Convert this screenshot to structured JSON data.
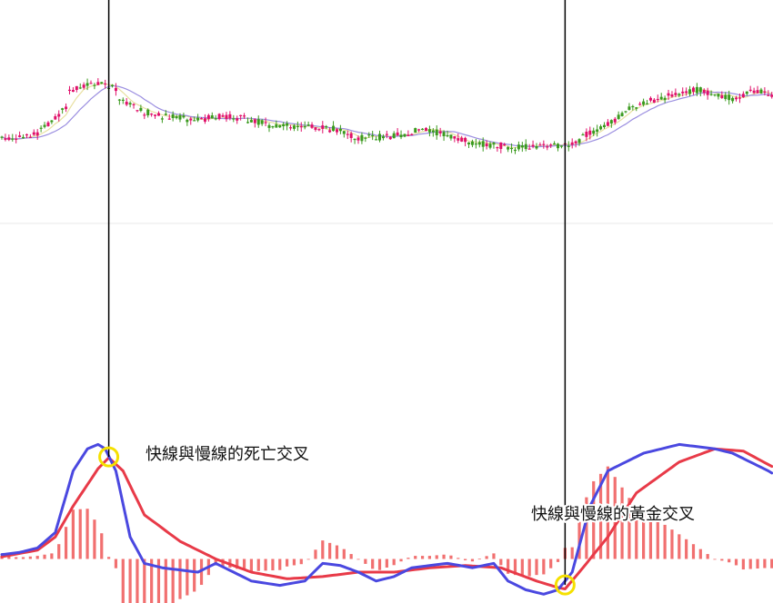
{
  "annotations": {
    "death_cross": "快線與慢線的死亡交叉",
    "golden_cross": "快線與慢線的黃金交叉"
  },
  "colors": {
    "up_candle": "#3a9a1e",
    "down_candle": "#e0106a",
    "ma_short": "#e8e0a0",
    "ma_long": "#9b8ee0",
    "fast_line": "#4a48e0",
    "slow_line": "#e83a48",
    "histogram": "#f06060",
    "marker": "#f5e000",
    "divider": "#000000",
    "panel_separator": "#e8e8e8"
  },
  "chart_data": [
    {
      "type": "candlestick",
      "x": {
        "start": 0,
        "end": 120
      },
      "ylim": [
        0,
        100
      ],
      "grid": false,
      "close_anchors": [
        [
          0,
          38
        ],
        [
          10,
          40
        ],
        [
          18,
          52
        ],
        [
          19,
          60
        ],
        [
          24,
          62
        ],
        [
          28,
          63
        ],
        [
          32,
          60
        ],
        [
          33,
          56
        ],
        [
          40,
          50
        ],
        [
          45,
          48
        ],
        [
          55,
          46
        ],
        [
          60,
          48
        ],
        [
          68,
          47
        ],
        [
          75,
          44
        ],
        [
          85,
          43
        ],
        [
          95,
          42
        ],
        [
          100,
          38
        ],
        [
          110,
          39
        ],
        [
          118,
          42
        ],
        [
          124,
          40
        ],
        [
          132,
          36
        ],
        [
          145,
          34
        ],
        [
          160,
          35
        ],
        [
          165,
          41
        ],
        [
          170,
          44
        ],
        [
          177,
          52
        ],
        [
          182,
          55
        ],
        [
          190,
          58
        ],
        [
          196,
          60
        ],
        [
          200,
          57
        ],
        [
          205,
          56
        ],
        [
          210,
          59
        ],
        [
          212,
          59
        ],
        [
          216,
          58
        ]
      ],
      "series": [
        {
          "name": "",
          "type": "ma",
          "period": 5
        },
        {
          "name": "",
          "type": "ma",
          "period": 12
        }
      ]
    },
    {
      "type": "line",
      "x": {
        "start": 0,
        "end": 120
      },
      "ylim": [
        -10,
        30
      ],
      "grid": false,
      "series": [
        {
          "name": "",
          "role": "fast",
          "anchors": [
            [
              0,
              1
            ],
            [
              5,
              1.5
            ],
            [
              10,
              2.5
            ],
            [
              15,
              6
            ],
            [
              20,
              20
            ],
            [
              24,
              25
            ],
            [
              27,
              26
            ],
            [
              29,
              25
            ],
            [
              32,
              20
            ],
            [
              36,
              5
            ],
            [
              40,
              -1
            ],
            [
              45,
              -2
            ],
            [
              55,
              -3
            ],
            [
              60,
              -1
            ],
            [
              70,
              -5
            ],
            [
              78,
              -6
            ],
            [
              85,
              -5
            ],
            [
              90,
              -1
            ],
            [
              95,
              -1.5
            ],
            [
              100,
              -3
            ],
            [
              105,
              -5
            ],
            [
              110,
              -4
            ],
            [
              115,
              -2
            ],
            [
              125,
              -1
            ],
            [
              132,
              -2
            ],
            [
              138,
              -1
            ],
            [
              142,
              -5
            ],
            [
              147,
              -7
            ],
            [
              152,
              -8
            ],
            [
              156,
              -7
            ],
            [
              160,
              -3
            ],
            [
              165,
              12
            ],
            [
              170,
              20
            ],
            [
              180,
              24
            ],
            [
              190,
              26
            ],
            [
              200,
              25
            ],
            [
              205,
              24
            ],
            [
              210,
              22
            ],
            [
              215,
              20
            ],
            [
              216,
              19.5
            ]
          ]
        },
        {
          "name": "",
          "role": "slow",
          "anchors": [
            [
              0,
              0.5
            ],
            [
              10,
              2
            ],
            [
              15,
              5
            ],
            [
              20,
              12
            ],
            [
              27,
              20.5
            ],
            [
              30,
              23
            ],
            [
              34,
              20
            ],
            [
              40,
              10
            ],
            [
              50,
              4
            ],
            [
              60,
              0
            ],
            [
              70,
              -3
            ],
            [
              80,
              -4.5
            ],
            [
              90,
              -4
            ],
            [
              100,
              -3
            ],
            [
              110,
              -3
            ],
            [
              120,
              -2
            ],
            [
              130,
              -1.5
            ],
            [
              140,
              -2
            ],
            [
              150,
              -5
            ],
            [
              156,
              -6.5
            ],
            [
              158,
              -6.8
            ],
            [
              162,
              -3
            ],
            [
              170,
              5
            ],
            [
              178,
              15
            ],
            [
              190,
              22
            ],
            [
              200,
              25
            ],
            [
              208,
              24.5
            ],
            [
              216,
              21
            ]
          ]
        }
      ],
      "histogram": {
        "name": "",
        "baseline": 0,
        "formula": "(fast - slow) * 1.4"
      },
      "annotations": [
        {
          "text_key": "death_cross",
          "label": "快線與慢線的死亡交叉",
          "at_x": 30
        },
        {
          "text_key": "golden_cross",
          "label": "快線與慢線的黃金交叉",
          "at_x": 158
        }
      ]
    }
  ]
}
